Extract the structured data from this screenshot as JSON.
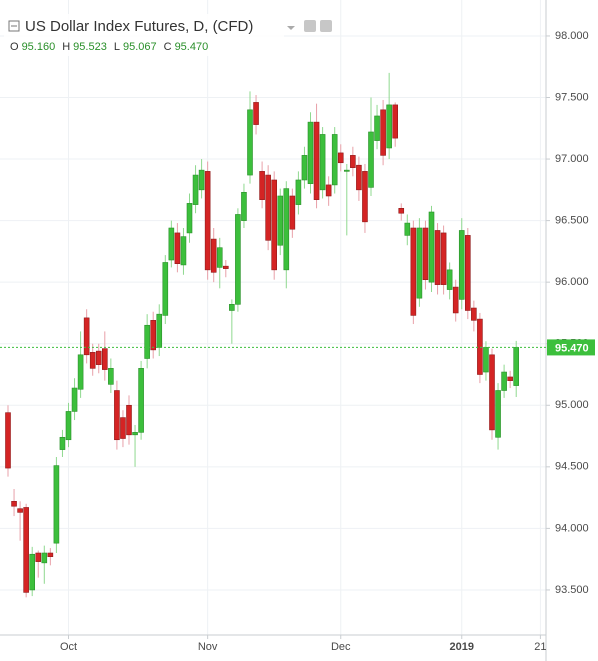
{
  "chart_data": {
    "type": "candlestick",
    "title": "US Dollar Index Futures, D, (CFD)",
    "ohlc_legend": [
      {
        "key": "O",
        "value": "95.160"
      },
      {
        "key": "H",
        "value": "95.523"
      },
      {
        "key": "L",
        "value": "95.067"
      },
      {
        "key": "C",
        "value": "95.470"
      }
    ],
    "categories": [
      null,
      null,
      null,
      null,
      null,
      null,
      null,
      null,
      null,
      null,
      "Oct",
      null,
      null,
      null,
      null,
      null,
      null,
      null,
      null,
      null,
      null,
      null,
      null,
      null,
      null,
      null,
      null,
      null,
      null,
      null,
      null,
      null,
      null,
      "Nov",
      null,
      null,
      null,
      null,
      null,
      null,
      null,
      null,
      null,
      null,
      null,
      null,
      null,
      null,
      null,
      null,
      null,
      null,
      null,
      null,
      null,
      "Dec",
      null,
      null,
      null,
      null,
      null,
      null,
      null,
      null,
      null,
      null,
      null,
      null,
      null,
      null,
      null,
      null,
      null,
      null,
      null,
      "2019",
      null,
      null,
      null,
      null,
      null,
      null,
      null,
      null,
      null,
      null,
      null,
      null,
      "21"
    ],
    "open": [
      94.94,
      94.22,
      94.16,
      94.17,
      93.5,
      93.8,
      93.72,
      93.8,
      93.88,
      94.64,
      94.72,
      94.95,
      95.13,
      95.71,
      95.43,
      95.44,
      95.46,
      95.17,
      95.12,
      94.9,
      95.0,
      94.76,
      94.78,
      95.38,
      95.69,
      95.47,
      95.73,
      96.18,
      96.4,
      96.14,
      96.4,
      96.63,
      96.75,
      96.9,
      96.35,
      96.12,
      96.13,
      95.77,
      95.82,
      96.5,
      96.87,
      97.46,
      96.9,
      96.87,
      96.83,
      96.3,
      96.1,
      96.7,
      96.63,
      96.83,
      96.8,
      97.3,
      96.75,
      96.79,
      96.79,
      97.05,
      96.9,
      97.03,
      96.95,
      96.9,
      96.77,
      97.15,
      97.4,
      97.09,
      97.44,
      96.6,
      96.38,
      96.44,
      95.87,
      96.44,
      96.0,
      96.42,
      96.4,
      95.94,
      95.96,
      95.86,
      96.38,
      95.79,
      95.7,
      95.27,
      95.41,
      94.74,
      95.12,
      95.23,
      95.16,
      null,
      null,
      null,
      null
    ],
    "high": [
      95.0,
      94.32,
      94.22,
      94.2,
      93.85,
      93.82,
      93.86,
      93.84,
      94.58,
      94.8,
      95.02,
      95.22,
      95.6,
      95.78,
      95.5,
      95.5,
      95.6,
      95.38,
      95.2,
      94.96,
      95.08,
      94.84,
      95.36,
      95.74,
      95.76,
      95.82,
      96.22,
      96.5,
      96.48,
      96.44,
      96.72,
      96.95,
      97.0,
      96.98,
      96.44,
      96.36,
      96.18,
      95.86,
      96.6,
      96.8,
      97.55,
      97.52,
      96.98,
      96.95,
      96.9,
      96.76,
      96.82,
      96.76,
      96.9,
      97.1,
      97.38,
      97.45,
      97.26,
      96.86,
      97.26,
      97.12,
      96.96,
      97.1,
      97.02,
      96.96,
      97.5,
      97.44,
      97.48,
      97.7,
      97.46,
      96.64,
      96.55,
      96.5,
      96.52,
      96.5,
      96.62,
      96.48,
      96.46,
      96.16,
      96.02,
      96.52,
      96.44,
      95.85,
      95.75,
      95.52,
      95.46,
      95.18,
      95.33,
      95.28,
      95.523,
      null,
      null,
      null,
      null
    ],
    "low": [
      94.42,
      94.1,
      93.9,
      93.44,
      93.45,
      93.6,
      93.55,
      93.7,
      93.8,
      94.58,
      94.66,
      94.88,
      95.06,
      95.34,
      95.24,
      95.26,
      95.2,
      95.1,
      94.64,
      94.66,
      94.68,
      94.5,
      94.72,
      95.3,
      95.38,
      95.4,
      95.66,
      96.12,
      96.08,
      96.06,
      96.32,
      96.56,
      96.68,
      96.02,
      96.0,
      95.95,
      96.04,
      95.5,
      95.76,
      96.44,
      96.8,
      97.2,
      96.6,
      96.26,
      96.02,
      96.22,
      95.95,
      96.36,
      96.55,
      96.76,
      96.72,
      96.6,
      96.68,
      96.62,
      96.72,
      96.9,
      96.38,
      96.86,
      96.66,
      96.4,
      96.7,
      97.08,
      96.95,
      97.0,
      97.1,
      96.5,
      96.3,
      95.66,
      95.8,
      95.94,
      95.92,
      95.9,
      95.9,
      95.86,
      95.68,
      95.78,
      95.7,
      95.6,
      95.18,
      95.2,
      94.72,
      94.64,
      95.06,
      95.14,
      95.067,
      null,
      null,
      null,
      null
    ],
    "close": [
      94.49,
      94.18,
      94.13,
      93.48,
      93.79,
      93.73,
      93.8,
      93.77,
      94.51,
      94.74,
      94.95,
      95.14,
      95.41,
      95.41,
      95.3,
      95.33,
      95.29,
      95.3,
      94.72,
      94.73,
      94.76,
      94.78,
      95.3,
      95.65,
      95.45,
      95.74,
      96.16,
      96.44,
      96.15,
      96.37,
      96.64,
      96.87,
      96.91,
      96.1,
      96.08,
      96.28,
      96.11,
      95.82,
      96.55,
      96.73,
      97.4,
      97.28,
      96.67,
      96.34,
      96.1,
      96.7,
      96.76,
      96.43,
      96.83,
      97.03,
      97.3,
      96.67,
      97.2,
      96.7,
      97.2,
      96.97,
      96.91,
      96.93,
      96.75,
      96.49,
      97.22,
      97.35,
      97.03,
      97.44,
      97.17,
      96.56,
      96.48,
      95.73,
      96.44,
      96.02,
      96.57,
      95.98,
      95.98,
      96.1,
      95.75,
      96.42,
      95.77,
      95.69,
      95.25,
      95.47,
      94.8,
      95.12,
      95.27,
      95.2,
      95.47,
      null,
      null,
      null,
      null
    ],
    "up_color": "#3cbf3c",
    "down_color": "#d42424",
    "current_price": {
      "value": 95.47,
      "label": "95.470"
    },
    "current_price_color": "#3cbf3c",
    "ylim": [
      93.134,
      98.292
    ],
    "yticks": [
      {
        "value": 93.5,
        "label": "93.500"
      },
      {
        "value": 94,
        "label": "94.000"
      },
      {
        "value": 94.5,
        "label": "94.500"
      },
      {
        "value": 95,
        "label": "95.000"
      },
      {
        "value": 95.5,
        "label": "95.500"
      },
      {
        "value": 96,
        "label": "96.000"
      },
      {
        "value": 96.5,
        "label": "96.500"
      },
      {
        "value": 97,
        "label": "97.000"
      },
      {
        "value": 97.5,
        "label": "97.500"
      },
      {
        "value": 98,
        "label": "98.000"
      }
    ],
    "grid": true
  }
}
